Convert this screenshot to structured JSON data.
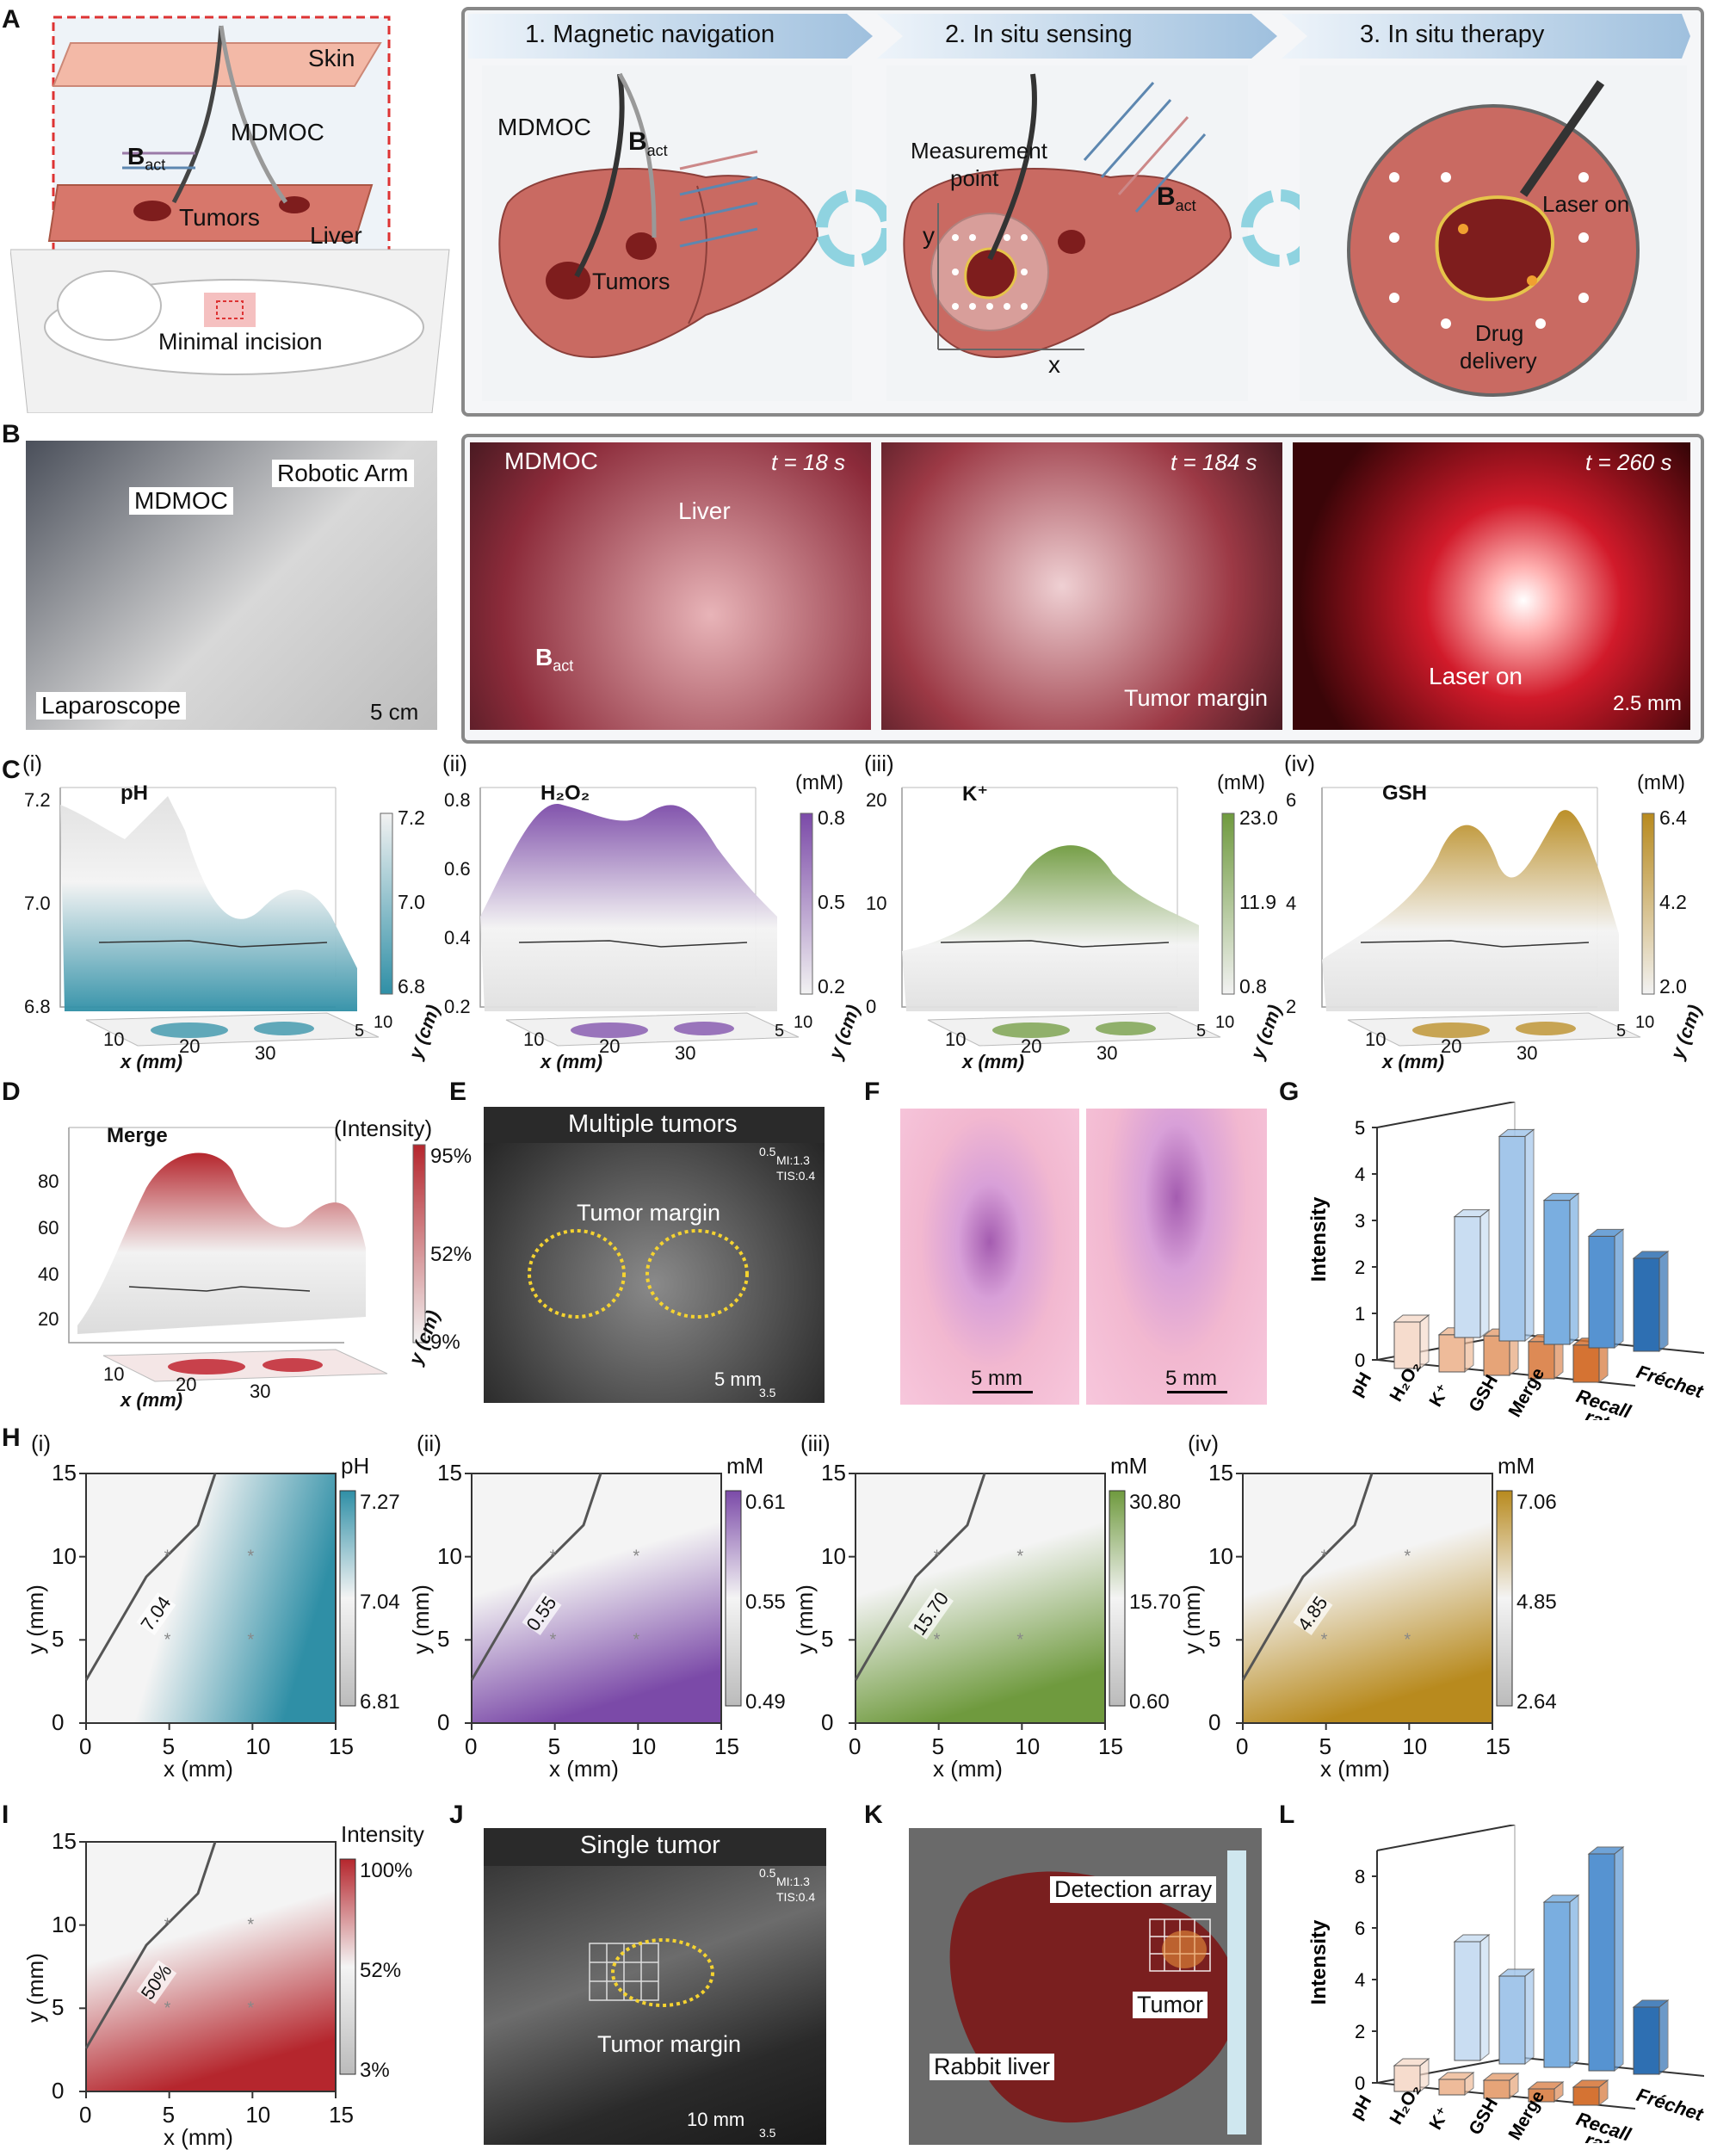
{
  "panels": {
    "A": {
      "letter": "A",
      "steps": [
        "1. Magnetic navigation",
        "2. In situ sensing",
        "3. In situ therapy"
      ],
      "left_labels": {
        "skin": "Skin",
        "mdmoc": "MDMOC",
        "b_act": "B",
        "b_sub": "act",
        "tumors": "Tumors",
        "liver": "Liver",
        "incision": "Minimal incision"
      },
      "step1_labels": {
        "mdmoc": "MDMOC",
        "b_act": "B",
        "b_sub": "act",
        "tumors": "Tumors"
      },
      "step2_labels": {
        "measure": "Measurement",
        "measure2": "point",
        "y": "y",
        "x": "x",
        "b_act": "B",
        "b_sub": "act"
      },
      "step3_labels": {
        "laser": "Laser on",
        "drug": "Drug",
        "drug2": "delivery"
      }
    },
    "B": {
      "letter": "B",
      "photo1": {
        "mdmoc": "MDMOC",
        "arm": "Robotic Arm",
        "lap": "Laparoscope",
        "scale": "5 cm"
      },
      "photo2": {
        "mdmoc": "MDMOC",
        "liver": "Liver",
        "b_act": "B",
        "b_sub": "act",
        "t": "t = 18 s"
      },
      "photo3": {
        "t": "t = 184 s",
        "margin": "Tumor margin"
      },
      "photo4": {
        "t": "t = 260 s",
        "laser": "Laser on",
        "scale": "2.5 mm"
      }
    },
    "C": {
      "letter": "C",
      "subs": [
        {
          "roman": "(i)",
          "title": "pH",
          "unit": "",
          "cbar": [
            "7.2",
            "7.0",
            "6.8"
          ],
          "zticks": [
            "7.2",
            "7.0",
            "6.8"
          ],
          "color": "#2f8fa6"
        },
        {
          "roman": "(ii)",
          "title": "H₂O₂",
          "unit": "(mM)",
          "cbar": [
            "0.8",
            "0.5",
            "0.2"
          ],
          "zticks": [
            "0.8",
            "0.6",
            "0.4",
            "0.2"
          ],
          "color": "#7b4aa8"
        },
        {
          "roman": "(iii)",
          "title": "K⁺",
          "unit": "(mM)",
          "cbar": [
            "23.0",
            "11.9",
            "0.8"
          ],
          "zticks": [
            "20",
            "10",
            "0"
          ],
          "color": "#6f9a3e"
        },
        {
          "roman": "(iv)",
          "title": "GSH",
          "unit": "(mM)",
          "cbar": [
            "6.4",
            "4.2",
            "2.0"
          ],
          "zticks": [
            "6",
            "4",
            "2"
          ],
          "color": "#b88a1e"
        }
      ],
      "xticks": [
        "10",
        "20",
        "30"
      ],
      "xlabel": "x (mm)",
      "yticks": [
        "5",
        "10"
      ],
      "ylabel": "y (cm)"
    },
    "D": {
      "letter": "D",
      "title": "Merge",
      "unit": "(Intensity)",
      "cbar": [
        "95%",
        "52%",
        "9%"
      ],
      "zticks": [
        "80",
        "60",
        "40",
        "20"
      ],
      "color": "#b5262d"
    },
    "E": {
      "letter": "E",
      "title": "Multiple tumors",
      "margin": "Tumor margin",
      "scale": "5 mm",
      "mi": "MI:1.3",
      "tis": "TIS:0.4",
      "top": "0.5",
      "bottom": "3.5"
    },
    "F": {
      "letter": "F",
      "scale1": "5 mm",
      "scale2": "5 mm"
    },
    "G": {
      "letter": "G",
      "chart_data": {
        "type": "bar",
        "title": "",
        "ylabel": "Intensity",
        "categories": [
          "pH",
          "H₂O₂",
          "K⁺",
          "GSH",
          "Merge"
        ],
        "series": [
          {
            "name": "Recall rate",
            "values": [
              1.0,
              0.8,
              0.85,
              0.8,
              0.8
            ]
          },
          {
            "name": "Fréchet",
            "values": [
              2.6,
              4.4,
              3.1,
              2.4,
              2.0
            ]
          }
        ],
        "ylim": [
          0,
          5
        ],
        "yticks": [
          "0",
          "1",
          "2",
          "3",
          "4",
          "5"
        ],
        "depth_labels": [
          "Fréchet",
          "Recall",
          "rate"
        ]
      }
    },
    "H": {
      "letter": "H",
      "subs": [
        {
          "roman": "(i)",
          "unit": "pH",
          "cbar": [
            "7.27",
            "7.04",
            "6.81"
          ],
          "contour": "7.04"
        },
        {
          "roman": "(ii)",
          "unit": "mM",
          "cbar": [
            "0.61",
            "0.55",
            "0.49"
          ],
          "contour": "0.55"
        },
        {
          "roman": "(iii)",
          "unit": "mM",
          "cbar": [
            "30.80",
            "15.70",
            "0.60"
          ],
          "contour": "15.70"
        },
        {
          "roman": "(iv)",
          "unit": "mM",
          "cbar": [
            "7.06",
            "4.85",
            "2.64"
          ],
          "contour": "4.85"
        }
      ],
      "ticks": [
        "0",
        "5",
        "10",
        "15"
      ],
      "xlabel": "x (mm)",
      "ylabel": "y (mm)"
    },
    "I": {
      "letter": "I",
      "unit": "Intensity",
      "cbar": [
        "100%",
        "52%",
        "3%"
      ],
      "contour": "50%"
    },
    "J": {
      "letter": "J",
      "title": "Single tumor",
      "margin": "Tumor margin",
      "scale": "10 mm",
      "mi": "MI:1.3",
      "tis": "TIS:0.4",
      "top": "0.5",
      "bottom": "3.5"
    },
    "K": {
      "letter": "K",
      "array": "Detection array",
      "tumor": "Tumor",
      "liver": "Rabbit liver"
    },
    "L": {
      "letter": "L",
      "chart_data": {
        "type": "bar",
        "title": "",
        "ylabel": "Intensity",
        "categories": [
          "pH",
          "H₂O₂",
          "K⁺",
          "GSH",
          "Merge"
        ],
        "series": [
          {
            "name": "Recall rate",
            "values": [
              1.0,
              0.6,
              0.7,
              0.5,
              0.7
            ]
          },
          {
            "name": "Fréchet",
            "values": [
              4.6,
              3.4,
              6.4,
              8.4,
              2.6
            ]
          }
        ],
        "ylim": [
          0,
          9
        ],
        "yticks": [
          "0",
          "2",
          "4",
          "6",
          "8"
        ],
        "depth_labels": [
          "Fréchet",
          "Recall",
          "rate"
        ]
      }
    }
  },
  "colors": {
    "ph": "#2f8fa6",
    "h2o2": "#7b4aa8",
    "k": "#6f9a3e",
    "gsh": "#b88a1e",
    "merge": "#b5262d",
    "liver": "#c96a62",
    "border": "#888888"
  }
}
